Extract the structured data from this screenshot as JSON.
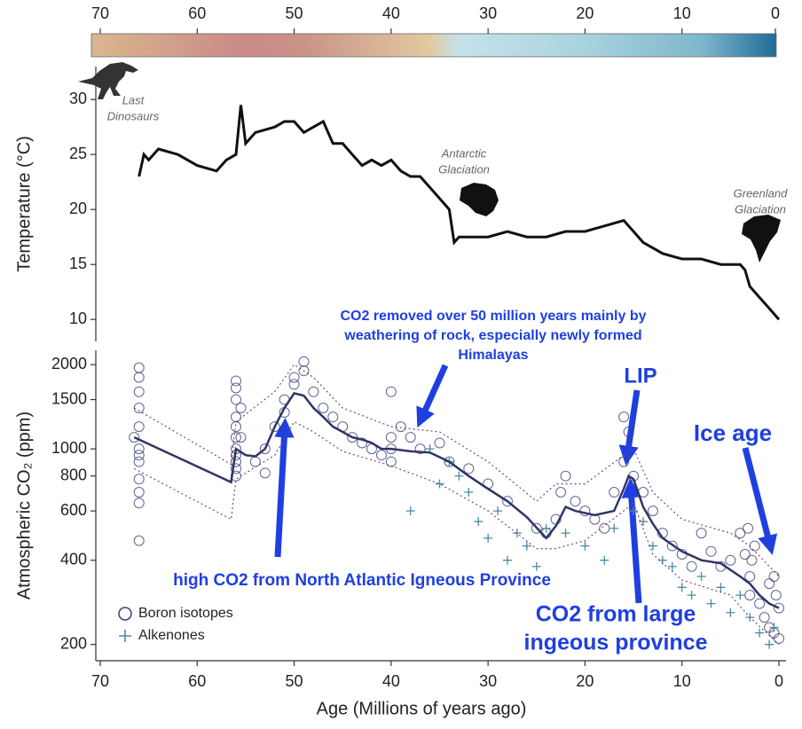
{
  "chart_data": [
    {
      "type": "line",
      "ylabel": "Temperature (°C)",
      "xlim": [
        70,
        0
      ],
      "xticks": [
        70,
        60,
        50,
        40,
        30,
        20,
        10,
        0
      ],
      "ylim": [
        8,
        33
      ],
      "yticks": [
        10,
        15,
        20,
        25,
        30
      ],
      "colorbar": [
        [
          70,
          "#d9b48e"
        ],
        [
          55,
          "#c98a88"
        ],
        [
          49,
          "#c99488"
        ],
        [
          36,
          "#e3c9a0"
        ],
        [
          33,
          "#c6e2ea"
        ],
        [
          20,
          "#a9d3df"
        ],
        [
          8,
          "#7fb7cc"
        ],
        [
          0,
          "#1f6c98"
        ]
      ],
      "series": [
        {
          "color": "#111111",
          "x": [
            66,
            65.5,
            65,
            64,
            62,
            60,
            58,
            57,
            56,
            55.5,
            55,
            54,
            52,
            51,
            50,
            49,
            48,
            47,
            46,
            45,
            44,
            43,
            42,
            41,
            40,
            39,
            38,
            37,
            36,
            35,
            34,
            33.5,
            33,
            31,
            30,
            28,
            26,
            24,
            22,
            20,
            18,
            16,
            15,
            14,
            12,
            10,
            8,
            6,
            4,
            3.5,
            3,
            2,
            1,
            0
          ],
          "values": [
            23,
            25,
            24.5,
            25.5,
            25,
            24,
            23.5,
            24.5,
            25,
            29.5,
            26,
            27,
            27.5,
            28,
            28,
            27,
            27.5,
            28,
            26,
            26,
            25,
            24,
            24.5,
            24,
            24.5,
            23.5,
            23,
            23,
            22,
            21,
            20,
            17,
            17.5,
            17.5,
            17.5,
            18,
            17.5,
            17.5,
            18,
            18,
            18.5,
            19,
            18,
            17,
            16,
            15.5,
            15.5,
            15,
            15,
            14.5,
            13,
            12,
            11,
            10
          ]
        }
      ],
      "annotations": [
        [
          "Last",
          "Dinosaurs"
        ],
        [
          "Antarctic",
          "Glaciation"
        ],
        [
          "Greenland",
          "Glaciation"
        ]
      ]
    },
    {
      "type": "scatter",
      "ylabel": "Atmospheric CO₂ (ppm)",
      "xlabel": "Age (Millions of years ago)",
      "xlim": [
        70,
        0
      ],
      "xticks": [
        70,
        60,
        50,
        40,
        30,
        20,
        10,
        0
      ],
      "ylim": [
        175,
        2250
      ],
      "log_y": true,
      "yticks": [
        200,
        400,
        600,
        800,
        1000,
        1500,
        2000
      ],
      "legend": "lower left",
      "series": [
        {
          "name": "Boron isotopes",
          "style": "circle",
          "color": "#3a3f7a",
          "x": [
            66.5,
            66,
            66,
            66,
            66,
            66,
            66,
            66,
            66,
            66,
            66,
            66,
            66,
            56,
            56,
            56,
            56,
            56,
            56,
            56,
            56,
            56,
            56,
            56,
            55.5,
            55.5,
            54,
            53,
            53,
            52,
            51,
            51,
            50,
            50,
            49,
            49,
            48,
            47,
            46,
            45,
            44,
            43,
            42,
            41,
            40,
            40,
            40,
            40,
            39,
            38,
            37,
            35,
            34,
            32,
            30,
            28,
            25,
            24,
            23,
            22.5,
            22,
            21,
            20,
            19,
            18,
            17,
            16,
            16,
            15.5,
            15,
            14,
            13,
            12,
            11,
            10,
            9,
            8,
            7,
            6,
            5,
            4,
            3.5,
            3,
            3,
            2.5,
            2,
            1.5,
            1,
            0.5,
            0.3,
            0,
            0,
            3.2,
            2.8,
            1,
            0.5
          ],
          "values": [
            1100,
            1950,
            1800,
            1600,
            1400,
            1200,
            1000,
            950,
            900,
            780,
            700,
            640,
            470,
            1750,
            1650,
            1500,
            1300,
            1200,
            1100,
            1000,
            950,
            900,
            850,
            800,
            1400,
            1100,
            900,
            820,
            1000,
            1200,
            1500,
            1350,
            1700,
            1800,
            2050,
            1900,
            1600,
            1400,
            1300,
            1200,
            1100,
            1050,
            1000,
            950,
            1600,
            1100,
            1000,
            900,
            1200,
            1100,
            1000,
            1050,
            900,
            850,
            750,
            650,
            520,
            500,
            560,
            700,
            800,
            650,
            600,
            560,
            520,
            700,
            900,
            1300,
            1150,
            800,
            700,
            600,
            500,
            450,
            420,
            380,
            500,
            430,
            380,
            400,
            500,
            420,
            350,
            300,
            450,
            280,
            250,
            230,
            220,
            300,
            270,
            210,
            520,
            400,
            330,
            350
          ]
        },
        {
          "name": "Alkenones",
          "style": "plus",
          "color": "#4a8aa8",
          "x": [
            36,
            35,
            34,
            33,
            32,
            31,
            30,
            29,
            28,
            27,
            26,
            25,
            24,
            22,
            20,
            18,
            17,
            15,
            14,
            13,
            12,
            11,
            10,
            9,
            8,
            7,
            6,
            5,
            4,
            3,
            2,
            1,
            0.5,
            38
          ],
          "values": [
            1000,
            750,
            900,
            800,
            700,
            550,
            480,
            600,
            400,
            500,
            450,
            380,
            520,
            500,
            450,
            400,
            520,
            600,
            550,
            450,
            400,
            380,
            320,
            300,
            350,
            280,
            320,
            260,
            300,
            250,
            220,
            200,
            230,
            600
          ]
        },
        {
          "style": "solid",
          "color": "#2f3466",
          "x": [
            66.5,
            56.5,
            56,
            55,
            54,
            53,
            52,
            51,
            50,
            49,
            48,
            47,
            46,
            45,
            44,
            43,
            42,
            41,
            40,
            38,
            36,
            34,
            32,
            30,
            28,
            26,
            24,
            23,
            22,
            21,
            19,
            17,
            16,
            15.5,
            15,
            14,
            13,
            12,
            10,
            8,
            6,
            4,
            3,
            2,
            1,
            0
          ],
          "values": [
            1100,
            760,
            1000,
            950,
            940,
            1000,
            1200,
            1400,
            1580,
            1550,
            1400,
            1300,
            1200,
            1150,
            1100,
            1080,
            1050,
            1000,
            1000,
            980,
            970,
            900,
            800,
            720,
            650,
            570,
            480,
            530,
            620,
            600,
            580,
            600,
            720,
            800,
            780,
            620,
            540,
            480,
            430,
            400,
            390,
            350,
            330,
            300,
            280,
            270
          ]
        },
        {
          "style": "dotted",
          "color": "#7a4a6a",
          "x": [
            66.5,
            56.5,
            56,
            52,
            50,
            48,
            45,
            40,
            35,
            30,
            25,
            23,
            20,
            16,
            15,
            13,
            10,
            5,
            3,
            0
          ],
          "values": [
            1400,
            880,
            1250,
            1600,
            2000,
            1800,
            1400,
            1200,
            1150,
            900,
            650,
            750,
            750,
            950,
            1000,
            700,
            560,
            500,
            450,
            350
          ]
        },
        {
          "style": "dotted",
          "color": "#7a4a6a",
          "x": [
            66.5,
            56.5,
            56,
            52,
            50,
            48,
            45,
            40,
            35,
            30,
            25,
            23,
            20,
            16,
            15,
            13,
            10,
            5,
            3,
            0
          ],
          "values": [
            850,
            560,
            780,
            950,
            1250,
            1150,
            980,
            870,
            750,
            600,
            440,
            440,
            470,
            600,
            640,
            420,
            340,
            300,
            250,
            200
          ]
        }
      ],
      "annotations": [
        [
          "CO2 removed over 50 million years mainly by",
          "weathering of rock, especially newly formed",
          "Himalayas"
        ],
        [
          "LIP"
        ],
        [
          "Ice age"
        ],
        [
          "high CO2 from North Atlantic Igneous Province"
        ],
        [
          "CO2 from large",
          "ingeous province"
        ]
      ]
    }
  ]
}
